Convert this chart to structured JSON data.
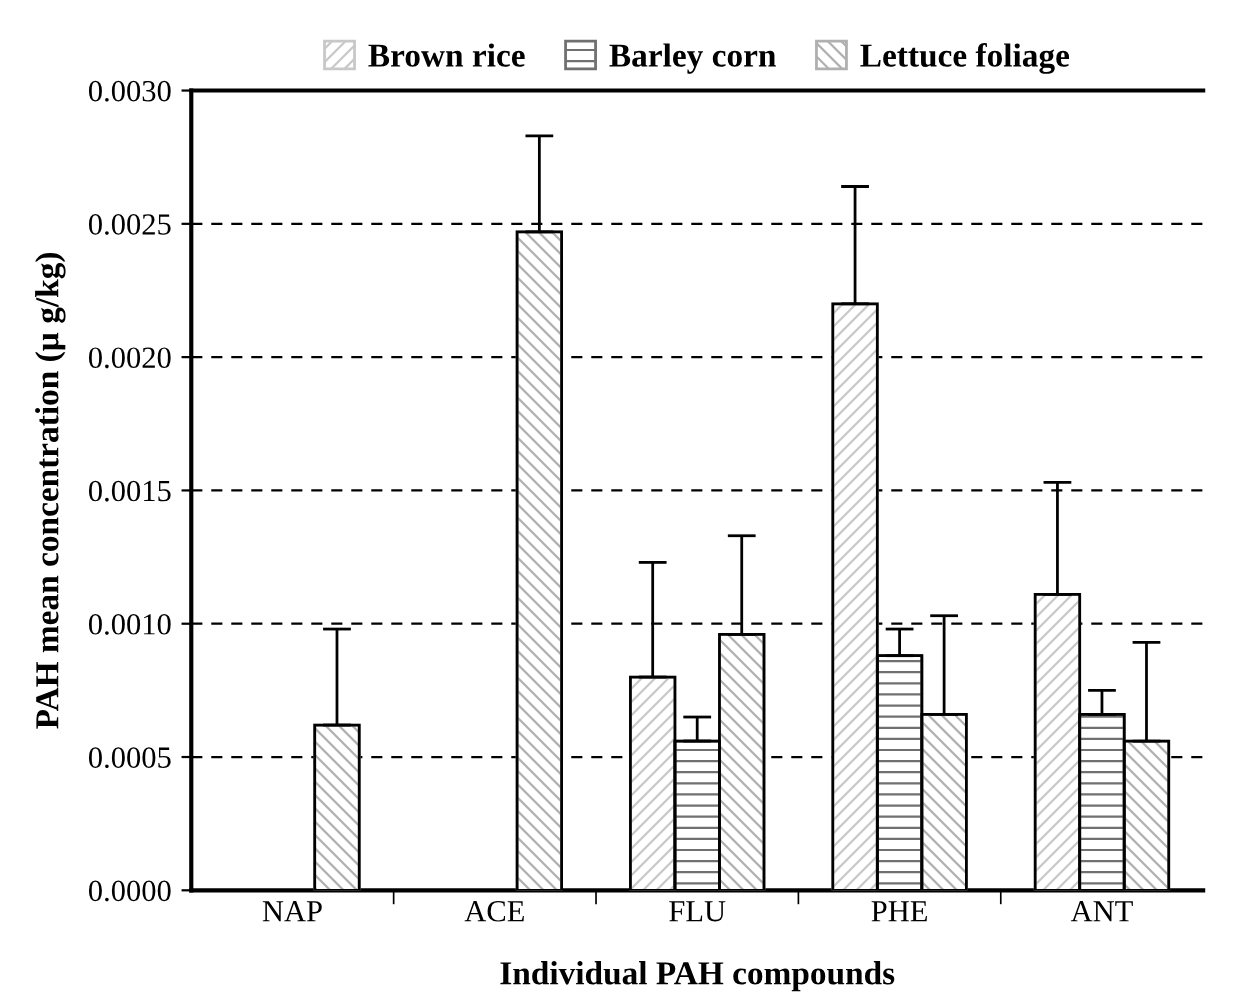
{
  "chart_data": {
    "type": "bar",
    "xlabel": "Individual PAH compounds",
    "ylabel": "PAH mean concentration (µ g/kg)",
    "categories": [
      "NAP",
      "ACE",
      "FLU",
      "PHE",
      "ANT"
    ],
    "series": [
      {
        "name": "Brown rice",
        "color": "#c8c8c8",
        "values": [
          null,
          null,
          0.0008,
          0.0022,
          0.00111
        ],
        "errors": [
          null,
          null,
          [
            0.0008,
            0.00123
          ],
          [
            0.0022,
            0.00264
          ],
          [
            0.00111,
            0.00153
          ]
        ]
      },
      {
        "name": "Barley corn",
        "color": "#707070",
        "values": [
          null,
          null,
          0.00056,
          0.00088,
          0.00066
        ],
        "errors": [
          null,
          null,
          [
            0.00056,
            0.00065
          ],
          [
            0.00088,
            0.00098
          ],
          [
            0.00066,
            0.00075
          ]
        ]
      },
      {
        "name": "Lettuce foliage",
        "color": "#b0b0b0",
        "values": [
          0.00062,
          0.00247,
          0.00096,
          0.00066,
          0.00056
        ],
        "errors": [
          [
            0.00062,
            0.00098
          ],
          [
            0.00247,
            0.00283
          ],
          [
            0.00096,
            0.00133
          ],
          [
            0.00066,
            0.00103
          ],
          [
            0.00056,
            0.00093
          ]
        ]
      }
    ],
    "ylim": [
      0,
      0.003
    ],
    "yticks": [
      {
        "value": 0,
        "label": "0.0000"
      },
      {
        "value": 0.0005,
        "label": "0.0005"
      },
      {
        "value": 0.001,
        "label": "0.0010"
      },
      {
        "value": 0.0015,
        "label": "0.0015"
      },
      {
        "value": 0.002,
        "label": "0.0020"
      },
      {
        "value": 0.0025,
        "label": "0.0025"
      },
      {
        "value": 0.003,
        "label": "0.0030"
      }
    ],
    "grid": "y",
    "legend": "top"
  }
}
